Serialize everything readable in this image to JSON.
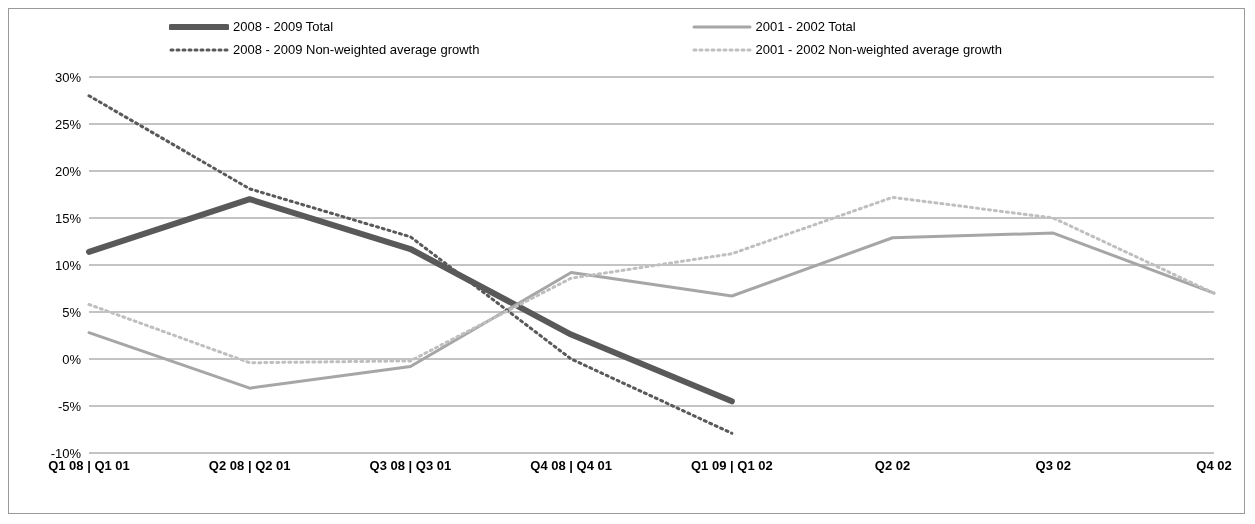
{
  "chart_data": {
    "type": "line",
    "categories": [
      "Q1 08 | Q1 01",
      "Q2 08 | Q2 01",
      "Q3 08 | Q3 01",
      "Q4 08 | Q4 01",
      "Q1 09 | Q1 02",
      "Q2 02",
      "Q3 02",
      "Q4 02"
    ],
    "series": [
      {
        "name": "2008 - 2009 Total",
        "color": "#595959",
        "values": [
          11.4,
          17.0,
          11.7,
          2.6,
          -4.5,
          null,
          null,
          null
        ]
      },
      {
        "name": "2001 - 2002 Total",
        "color": "#a6a6a6",
        "values": [
          2.8,
          -3.1,
          -0.8,
          9.2,
          6.7,
          12.9,
          13.4,
          7.0
        ]
      },
      {
        "name": "2008 - 2009 Non-weighted average growth",
        "color": "#595959",
        "line_style": "dotted",
        "values": [
          28.0,
          18.1,
          13.0,
          0.0,
          -7.9,
          null,
          null,
          null
        ]
      },
      {
        "name": "2001 - 2002 Non-weighted average growth",
        "color": "#bfbfbf",
        "line_style": "dotted",
        "values": [
          5.8,
          -0.4,
          -0.2,
          8.6,
          11.2,
          17.2,
          15.0,
          7.0
        ]
      }
    ],
    "ylim": [
      -10,
      30
    ],
    "yticks": [
      {
        "value": -10,
        "label": "-10%"
      },
      {
        "value": -5,
        "label": "-5%"
      },
      {
        "value": 0,
        "label": "0%"
      },
      {
        "value": 5,
        "label": "5%"
      },
      {
        "value": 10,
        "label": "10%"
      },
      {
        "value": 15,
        "label": "15%"
      },
      {
        "value": 20,
        "label": "20%"
      },
      {
        "value": 25,
        "label": "25%"
      },
      {
        "value": 30,
        "label": "30%"
      }
    ],
    "grid": "y",
    "legend": "top",
    "marker": "none"
  }
}
